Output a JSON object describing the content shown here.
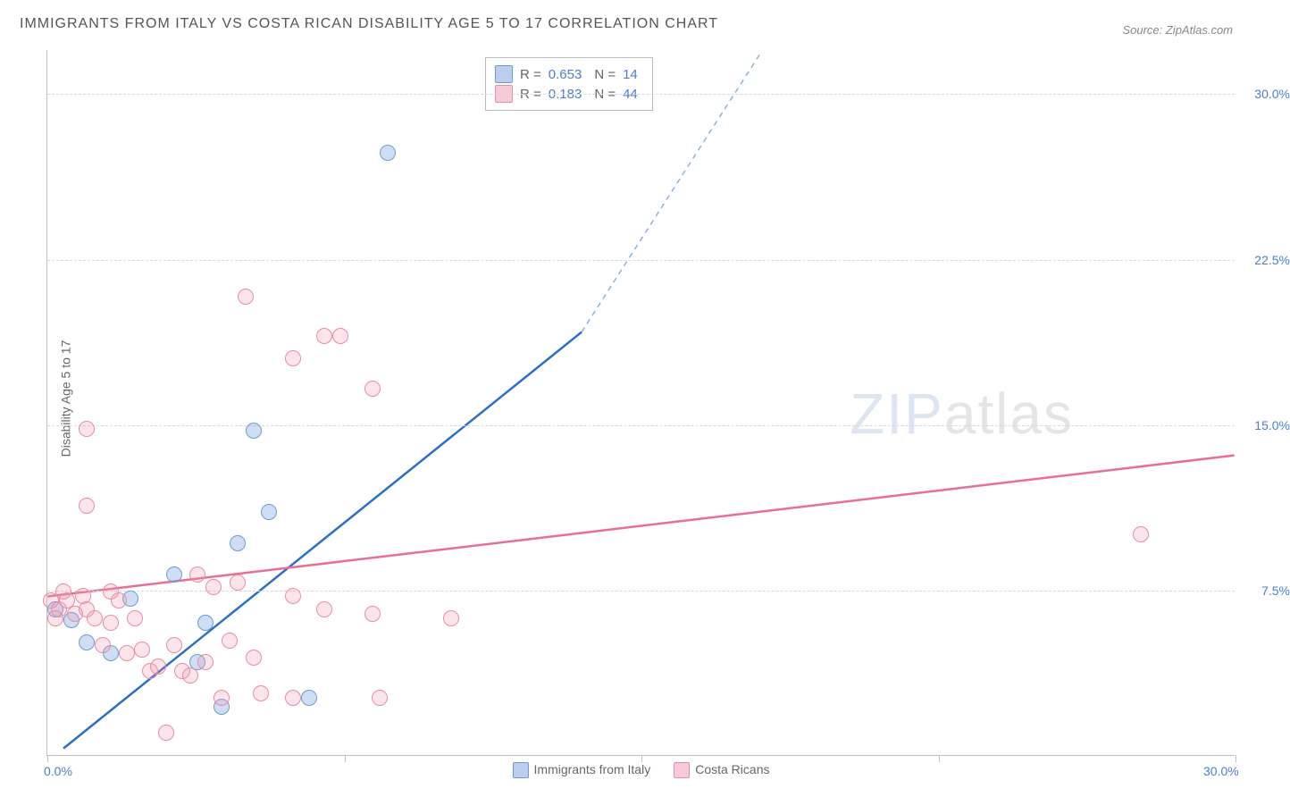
{
  "title": "IMMIGRANTS FROM ITALY VS COSTA RICAN DISABILITY AGE 5 TO 17 CORRELATION CHART",
  "source": "Source: ZipAtlas.com",
  "ylabel": "Disability Age 5 to 17",
  "watermark_bold": "ZIP",
  "watermark_thin": "atlas",
  "chart": {
    "type": "scatter",
    "xlim": [
      0,
      30
    ],
    "ylim": [
      0,
      32
    ],
    "xticks": [
      0,
      7.5,
      15,
      22.5,
      30
    ],
    "xtick_labels": [
      "0.0%",
      "",
      "",
      "",
      "30.0%"
    ],
    "yticks": [
      7.5,
      15.0,
      22.5,
      30.0
    ],
    "ytick_labels": [
      "7.5%",
      "15.0%",
      "22.5%",
      "30.0%"
    ],
    "grid_color": "#d8d8d8",
    "axis_color": "#c0c0c0",
    "background_color": "#ffffff",
    "marker_radius": 9,
    "series": [
      {
        "name": "Immigrants from Italy",
        "color_fill": "rgba(120,160,220,0.35)",
        "color_stroke": "#6a9bd8",
        "line_color": "#2e6fc4",
        "R": "0.653",
        "N": "14",
        "trend": {
          "x1": 0.4,
          "y1": 0.3,
          "x2": 13.5,
          "y2": 19.2,
          "dash_x2": 18.0,
          "dash_y2": 31.8
        },
        "points": [
          [
            0.2,
            6.6
          ],
          [
            0.6,
            6.1
          ],
          [
            1.0,
            5.1
          ],
          [
            1.6,
            4.6
          ],
          [
            2.1,
            7.1
          ],
          [
            3.8,
            4.2
          ],
          [
            3.2,
            8.2
          ],
          [
            4.4,
            2.2
          ],
          [
            4.8,
            9.6
          ],
          [
            5.6,
            11.0
          ],
          [
            5.2,
            14.7
          ],
          [
            6.6,
            2.6
          ],
          [
            8.6,
            27.3
          ],
          [
            4.0,
            6.0
          ]
        ]
      },
      {
        "name": "Costa Ricans",
        "color_fill": "rgba(240,150,175,0.25)",
        "color_stroke": "#e98ba6",
        "line_color": "#e86f92",
        "R": "0.183",
        "N": "44",
        "trend": {
          "x1": 0,
          "y1": 7.2,
          "x2": 30,
          "y2": 13.6
        },
        "points": [
          [
            0.1,
            7.0
          ],
          [
            0.3,
            6.6
          ],
          [
            0.5,
            7.0
          ],
          [
            0.7,
            6.4
          ],
          [
            0.9,
            7.2
          ],
          [
            0.4,
            7.4
          ],
          [
            1.0,
            6.6
          ],
          [
            1.2,
            6.2
          ],
          [
            1.4,
            5.0
          ],
          [
            1.0,
            11.3
          ],
          [
            1.6,
            6.0
          ],
          [
            1.8,
            7.0
          ],
          [
            1.0,
            14.8
          ],
          [
            2.0,
            4.6
          ],
          [
            2.2,
            6.2
          ],
          [
            2.4,
            4.8
          ],
          [
            2.6,
            3.8
          ],
          [
            2.8,
            4.0
          ],
          [
            3.0,
            1.0
          ],
          [
            3.2,
            5.0
          ],
          [
            3.4,
            3.8
          ],
          [
            3.6,
            3.6
          ],
          [
            3.8,
            8.2
          ],
          [
            4.0,
            4.2
          ],
          [
            4.2,
            7.6
          ],
          [
            4.4,
            2.6
          ],
          [
            4.6,
            5.2
          ],
          [
            4.8,
            7.8
          ],
          [
            5.0,
            20.8
          ],
          [
            5.2,
            4.4
          ],
          [
            5.4,
            2.8
          ],
          [
            6.2,
            7.2
          ],
          [
            6.2,
            18.0
          ],
          [
            6.2,
            2.6
          ],
          [
            7.0,
            19.0
          ],
          [
            7.0,
            6.6
          ],
          [
            7.4,
            19.0
          ],
          [
            8.2,
            16.6
          ],
          [
            8.2,
            6.4
          ],
          [
            8.4,
            2.6
          ],
          [
            10.2,
            6.2
          ],
          [
            27.6,
            10.0
          ],
          [
            1.6,
            7.4
          ],
          [
            0.2,
            6.2
          ]
        ]
      }
    ]
  },
  "bottom_legend": [
    {
      "label": "Immigrants from Italy",
      "sw": "sw-blue"
    },
    {
      "label": "Costa Ricans",
      "sw": "sw-pink"
    }
  ]
}
